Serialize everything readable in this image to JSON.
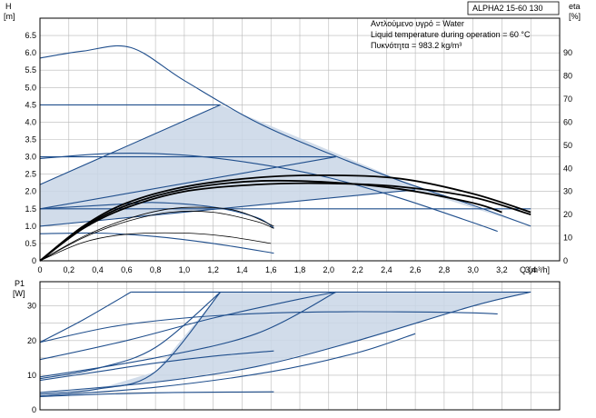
{
  "title": "ALPHA2 15-60 130",
  "info_lines": [
    "Αντλούμενο υγρό = Water",
    "Liquid temperature during operation = 60 °C",
    "Πυκνότητα = 983.2 kg/m³"
  ],
  "colors": {
    "curve": "#1f4e8c",
    "fill": "#c9d6e6",
    "efficiency": "#000000",
    "grid": "#b8b8b8"
  },
  "chart_data": [
    {
      "type": "line",
      "name": "head",
      "ylabel": "H",
      "yunit": "[m]",
      "y2label": "eta",
      "y2unit": "[%]",
      "xlabel": "Q",
      "xunit": "[m³/h]",
      "xlim": [
        0,
        3.6
      ],
      "ylim": [
        0,
        7.0
      ],
      "y2lim": [
        0,
        105
      ],
      "xticks": [
        "0",
        "0,2",
        "0,4",
        "0,6",
        "0,8",
        "1,0",
        "1,2",
        "1,4",
        "1,6",
        "1,8",
        "2,0",
        "2,2",
        "2,4",
        "2,6",
        "2,8",
        "3,0",
        "3,2",
        "3,4"
      ],
      "yticks": [
        "0",
        "0.5",
        "1.0",
        "1.5",
        "2.0",
        "2.5",
        "3.0",
        "3.5",
        "4.0",
        "4.5",
        "5.0",
        "5.5",
        "6.0",
        "6.5"
      ],
      "y2ticks": [
        "0",
        "10",
        "20",
        "30",
        "40",
        "50",
        "60",
        "70",
        "80",
        "90"
      ],
      "grid": true,
      "shaded_region": [
        [
          0,
          2.2
        ],
        [
          1.25,
          4.5
        ],
        [
          2.6,
          2.15
        ],
        [
          3.4,
          1.0
        ],
        [
          2.6,
          2.05
        ],
        [
          0,
          1.0
        ]
      ],
      "series": [
        {
          "role": "max-curve",
          "points": [
            [
              0,
              5.85
            ],
            [
              0.3,
              6.05
            ],
            [
              0.63,
              6.15
            ],
            [
              1.0,
              5.2
            ],
            [
              1.5,
              4.0
            ],
            [
              2.0,
              3.1
            ],
            [
              2.5,
              2.3
            ],
            [
              3.0,
              1.6
            ],
            [
              3.4,
              1.0
            ]
          ]
        },
        {
          "role": "constant-pressure-max",
          "points": [
            [
              0,
              4.5
            ],
            [
              1.25,
              4.5
            ]
          ]
        },
        {
          "role": "constant-pressure-mid",
          "points": [
            [
              0,
              3.0
            ],
            [
              2.05,
              3.0
            ]
          ]
        },
        {
          "role": "constant-pressure-low",
          "points": [
            [
              0,
              1.5
            ],
            [
              3.4,
              1.5
            ]
          ]
        },
        {
          "role": "proportional-pressure-high",
          "points": [
            [
              0,
              2.2
            ],
            [
              1.25,
              4.5
            ]
          ]
        },
        {
          "role": "proportional-pressure-mid",
          "points": [
            [
              0,
              1.5
            ],
            [
              2.05,
              3.0
            ]
          ]
        },
        {
          "role": "proportional-pressure-low",
          "points": [
            [
              0,
              1.0
            ],
            [
              2.6,
              2.05
            ]
          ]
        },
        {
          "role": "speed-curve-3",
          "points": [
            [
              0,
              2.95
            ],
            [
              0.5,
              3.1
            ],
            [
              1.0,
              3.05
            ],
            [
              1.5,
              2.8
            ],
            [
              2.0,
              2.4
            ],
            [
              2.5,
              1.8
            ],
            [
              3.0,
              1.1
            ],
            [
              3.17,
              0.85
            ]
          ]
        },
        {
          "role": "speed-curve-2",
          "points": [
            [
              0,
              1.5
            ],
            [
              0.5,
              1.62
            ],
            [
              0.8,
              1.68
            ],
            [
              1.2,
              1.55
            ],
            [
              1.5,
              1.25
            ],
            [
              1.62,
              0.95
            ]
          ]
        },
        {
          "role": "speed-curve-1",
          "points": [
            [
              0,
              0.78
            ],
            [
              0.4,
              0.8
            ],
            [
              0.8,
              0.7
            ],
            [
              1.2,
              0.5
            ],
            [
              1.62,
              0.22
            ]
          ]
        }
      ],
      "efficiency_series": [
        {
          "role": "eta-max",
          "points": [
            [
              0,
              0
            ],
            [
              0.3,
              15
            ],
            [
              0.6,
              25
            ],
            [
              1.0,
              32
            ],
            [
              1.5,
              36
            ],
            [
              2.0,
              37
            ],
            [
              2.5,
              35.5
            ],
            [
              3.0,
              29
            ],
            [
              3.4,
              21
            ]
          ]
        },
        {
          "role": "eta-mid",
          "points": [
            [
              0,
              0
            ],
            [
              0.3,
              14.5
            ],
            [
              0.6,
              24
            ],
            [
              1.0,
              31
            ],
            [
              1.5,
              34.5
            ],
            [
              2.0,
              34
            ],
            [
              2.5,
              31
            ],
            [
              3.0,
              25
            ],
            [
              3.2,
              21
            ]
          ]
        },
        {
          "role": "eta-low",
          "points": [
            [
              0,
              0
            ],
            [
              0.3,
              14
            ],
            [
              0.6,
              23
            ],
            [
              1.0,
              30
            ],
            [
              1.5,
              33
            ],
            [
              2.0,
              33.5
            ],
            [
              2.5,
              32
            ],
            [
              3.0,
              27.5
            ],
            [
              3.4,
              20
            ]
          ]
        },
        {
          "role": "eta-speed-2",
          "points": [
            [
              0,
              0
            ],
            [
              0.3,
              10
            ],
            [
              0.6,
              17
            ],
            [
              0.9,
              21
            ],
            [
              1.2,
              21
            ],
            [
              1.5,
              17
            ],
            [
              1.62,
              14
            ]
          ]
        },
        {
          "role": "eta-speed-2b",
          "points": [
            [
              0,
              0
            ],
            [
              0.3,
              10.5
            ],
            [
              0.6,
              18
            ],
            [
              0.9,
              22.5
            ],
            [
              1.2,
              23
            ],
            [
              1.4,
              21
            ],
            [
              1.62,
              15
            ]
          ]
        },
        {
          "role": "eta-speed-1",
          "points": [
            [
              0,
              0
            ],
            [
              0.3,
              8
            ],
            [
              0.6,
              11.5
            ],
            [
              1.0,
              12
            ],
            [
              1.3,
              10.5
            ],
            [
              1.6,
              7.5
            ]
          ]
        }
      ]
    },
    {
      "type": "line",
      "name": "power",
      "ylabel": "P1",
      "yunit": "[W]",
      "xlim": [
        0,
        3.6
      ],
      "ylim": [
        0,
        37
      ],
      "yticks": [
        "0",
        "10",
        "20",
        "30"
      ],
      "grid": true,
      "shaded_region": [
        [
          0,
          9.5
        ],
        [
          0.6,
          13
        ],
        [
          1.25,
          34
        ],
        [
          2.6,
          34
        ],
        [
          3.4,
          34
        ],
        [
          0,
          5
        ]
      ],
      "series": [
        {
          "role": "max-power-limit",
          "points": [
            [
              0.63,
              34
            ],
            [
              3.4,
              34
            ]
          ]
        },
        {
          "role": "speed-curve-3",
          "points": [
            [
              0,
              19.5
            ],
            [
              0.5,
              24
            ],
            [
              1.0,
              26.5
            ],
            [
              1.5,
              27.8
            ],
            [
              2.0,
              28.3
            ],
            [
              2.5,
              28.3
            ],
            [
              3.0,
              28
            ],
            [
              3.17,
              27.7
            ]
          ]
        },
        {
          "role": "max-curve",
          "points": [
            [
              0,
              19.5
            ],
            [
              0.3,
              26
            ],
            [
              0.63,
              34
            ]
          ]
        },
        {
          "role": "cp-max",
          "points": [
            [
              0,
              9
            ],
            [
              0.4,
              12
            ],
            [
              0.8,
              18
            ],
            [
              1.25,
              34
            ]
          ]
        },
        {
          "role": "cp-mid",
          "points": [
            [
              0,
              14.5
            ],
            [
              0.6,
              20
            ],
            [
              1.2,
              26.5
            ],
            [
              1.8,
              32
            ],
            [
              2.05,
              34
            ]
          ]
        },
        {
          "role": "cp-low",
          "points": [
            [
              0,
              5
            ],
            [
              0.8,
              8
            ],
            [
              1.5,
              12.5
            ],
            [
              2.2,
              20
            ],
            [
              3.0,
              30
            ],
            [
              3.4,
              34
            ]
          ]
        },
        {
          "role": "pp-high",
          "points": [
            [
              0,
              4.5
            ],
            [
              0.4,
              6
            ],
            [
              0.8,
              11
            ],
            [
              1.25,
              34
            ]
          ]
        },
        {
          "role": "pp-mid",
          "points": [
            [
              0,
              9.5
            ],
            [
              0.8,
              15
            ],
            [
              1.5,
              22
            ],
            [
              2.05,
              34
            ]
          ]
        },
        {
          "role": "pp-low",
          "points": [
            [
              0,
              4
            ],
            [
              0.8,
              6.5
            ],
            [
              1.6,
              11
            ],
            [
              2.2,
              16.5
            ],
            [
              2.6,
              22
            ]
          ]
        },
        {
          "role": "speed-curve-2",
          "points": [
            [
              0,
              8.5
            ],
            [
              0.4,
              11
            ],
            [
              0.8,
              13.5
            ],
            [
              1.2,
              15.5
            ],
            [
              1.62,
              17
            ]
          ]
        },
        {
          "role": "speed-curve-1",
          "points": [
            [
              0,
              3.8
            ],
            [
              0.4,
              4.5
            ],
            [
              0.8,
              4.9
            ],
            [
              1.2,
              5.1
            ],
            [
              1.62,
              5.2
            ]
          ]
        }
      ]
    }
  ]
}
